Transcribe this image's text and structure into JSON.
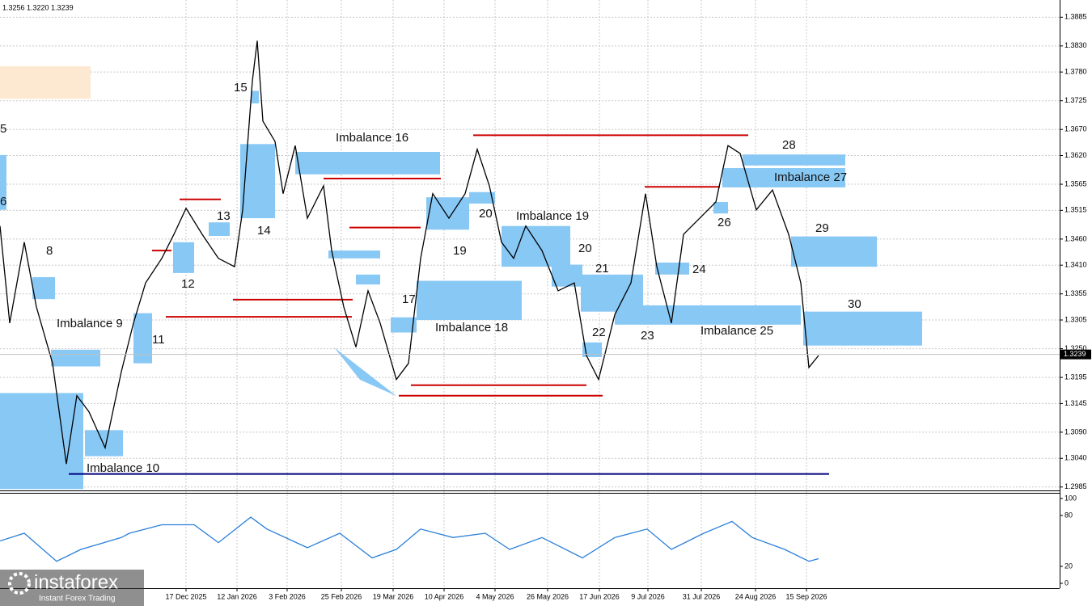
{
  "header": {
    "ohlc": "1.3256 1.3220 1.3239"
  },
  "chart_data": {
    "type": "line",
    "color": "#000000",
    "x": [
      0,
      3,
      7.5,
      11.25,
      16.25,
      20.5,
      23.75,
      27.5,
      32.5,
      37.5,
      41.25,
      45,
      50,
      53.75,
      57.5,
      62.5,
      67.5,
      72.5,
      75,
      78,
      79.5,
      81.25,
      85,
      87.5,
      91.25,
      95,
      100,
      102.5,
      106.25,
      110,
      113.75,
      117.5,
      122.5,
      126.25,
      130,
      133.75,
      138.75,
      143.75,
      147.5,
      151.25,
      155,
      158.75,
      162.5,
      167.5,
      172.5,
      177.5,
      181.25,
      185,
      190,
      195,
      199.5,
      203,
      207.5,
      211.25,
      216.25,
      221.25,
      225,
      228.75,
      233.75,
      238.75,
      243.75,
      247.5,
      250,
      253
    ],
    "values": [
      1.3485,
      1.3299,
      1.3454,
      1.333,
      1.3222,
      1.3029,
      1.316,
      1.3129,
      1.306,
      1.3206,
      1.3299,
      1.3376,
      1.3423,
      1.3469,
      1.3519,
      1.3469,
      1.3423,
      1.3407,
      1.3516,
      1.3763,
      1.384,
      1.3686,
      1.3647,
      1.3547,
      1.3639,
      1.35,
      1.3562,
      1.3438,
      1.333,
      1.3253,
      1.3361,
      1.3299,
      1.3191,
      1.3222,
      1.3423,
      1.3547,
      1.35,
      1.3547,
      1.3632,
      1.3562,
      1.3454,
      1.3423,
      1.3485,
      1.3438,
      1.3361,
      1.3376,
      1.3237,
      1.3191,
      1.3315,
      1.3376,
      1.3547,
      1.3407,
      1.3299,
      1.3469,
      1.35,
      1.3531,
      1.3639,
      1.3624,
      1.3516,
      1.3554,
      1.3469,
      1.3376,
      1.3214,
      1.3237
    ],
    "xlim": [
      0,
      327.5
    ],
    "ylim": [
      1.298,
      1.3918
    ],
    "grid": true,
    "yticks": [
      1.3885,
      {
        "value": 1.383,
        "label": "1.3830"
      },
      {
        "value": 1.378,
        "label": "1.3780"
      },
      1.3725,
      {
        "value": 1.367,
        "label": "1.3670"
      },
      {
        "value": 1.362,
        "label": "1.3620"
      },
      1.3565,
      1.3515,
      {
        "value": 1.346,
        "label": "1.3460"
      },
      {
        "value": 1.341,
        "label": "1.3410"
      },
      1.3355,
      1.3305,
      {
        "value": 1.325,
        "label": "1.3250"
      },
      1.3195,
      1.3145,
      {
        "value": 1.309,
        "label": "1.3090"
      },
      {
        "value": 1.304,
        "label": "1.3040"
      },
      1.2985
    ],
    "xticks": [
      {
        "value": 57.5,
        "label": "17 Dec 2025"
      },
      {
        "value": 73.25,
        "label": "12 Jan 2026"
      },
      {
        "value": 88.75,
        "label": "3 Feb 2026"
      },
      {
        "value": 105.5,
        "label": "25 Feb 2026"
      },
      {
        "value": 121.5,
        "label": "19 Mar 2026"
      },
      {
        "value": 137.25,
        "label": "10 Apr 2026"
      },
      {
        "value": 153,
        "label": "4 May 2026"
      },
      {
        "value": 169.25,
        "label": "26 May 2026"
      },
      {
        "value": 185.25,
        "label": "17 Jun 2026"
      },
      {
        "value": 200.25,
        "label": "9 Jul 2026"
      },
      {
        "value": 216.75,
        "label": "31 Jul 2026"
      },
      {
        "value": 233.5,
        "label": "24 Aug 2026"
      },
      {
        "value": 249.25,
        "label": "15 Sep 2026"
      }
    ],
    "current_price": 1.3239,
    "zones": [
      {
        "top": 1.3791,
        "bottom": 1.3729,
        "x0": 0,
        "x1": 28,
        "color": "#fde9d2"
      },
      {
        "top": 1.3621,
        "bottom": 1.3516,
        "x0": 0,
        "x1": 2,
        "color": "#88c8f5"
      },
      {
        "top": 1.3387,
        "bottom": 1.3345,
        "x0": 10,
        "x1": 17,
        "color": "#88c8f5"
      },
      {
        "top": 1.3248,
        "bottom": 1.3216,
        "x0": 15.75,
        "x1": 31,
        "color": "#88c8f5"
      },
      {
        "top": 1.3165,
        "bottom": 1.2981,
        "x0": 0,
        "x1": 25.75,
        "color": "#88c8f5"
      },
      {
        "top": 1.3094,
        "bottom": 1.3044,
        "x0": 26.25,
        "x1": 38,
        "color": "#88c8f5"
      },
      {
        "top": 1.3318,
        "bottom": 1.3222,
        "x0": 41.25,
        "x1": 47,
        "color": "#88c8f5"
      },
      {
        "top": 1.3454,
        "bottom": 1.3395,
        "x0": 53.5,
        "x1": 60,
        "color": "#88c8f5"
      },
      {
        "top": 1.3492,
        "bottom": 1.3466,
        "x0": 64.5,
        "x1": 71,
        "color": "#88c8f5"
      },
      {
        "top": 1.3642,
        "bottom": 1.35,
        "x0": 74.25,
        "x1": 85,
        "color": "#88c8f5"
      },
      {
        "top": 1.3744,
        "bottom": 1.372,
        "x0": 77.5,
        "x1": 80,
        "color": "#88c8f5"
      },
      {
        "top": 1.3627,
        "bottom": 1.3584,
        "x0": 91.25,
        "x1": 136,
        "color": "#88c8f5"
      },
      {
        "top": 1.3438,
        "bottom": 1.3423,
        "x0": 101.5,
        "x1": 117.5,
        "color": "#88c8f5"
      },
      {
        "top": 1.3392,
        "bottom": 1.3373,
        "x0": 110,
        "x1": 117.5,
        "color": "#88c8f5"
      },
      {
        "top": 1.331,
        "bottom": 1.3281,
        "x0": 120.75,
        "x1": 128.75,
        "color": "#88c8f5"
      },
      {
        "top": 1.338,
        "bottom": 1.3305,
        "x0": 128.75,
        "x1": 161.25,
        "color": "#88c8f5"
      },
      {
        "top": 1.354,
        "bottom": 1.3478,
        "x0": 131.75,
        "x1": 145,
        "color": "#88c8f5"
      },
      {
        "top": 1.355,
        "bottom": 1.3528,
        "x0": 145,
        "x1": 153,
        "color": "#88c8f5"
      },
      {
        "top": 1.3485,
        "bottom": 1.3407,
        "x0": 155,
        "x1": 176.25,
        "color": "#88c8f5"
      },
      {
        "top": 1.3411,
        "bottom": 1.3369,
        "x0": 170.5,
        "x1": 180,
        "color": "#88c8f5"
      },
      {
        "top": 1.3392,
        "bottom": 1.3321,
        "x0": 179.5,
        "x1": 198.75,
        "color": "#88c8f5"
      },
      {
        "top": 1.3262,
        "bottom": 1.3234,
        "x0": 180,
        "x1": 186,
        "color": "#88c8f5"
      },
      {
        "top": 1.3333,
        "bottom": 1.3296,
        "x0": 190,
        "x1": 247.5,
        "color": "#88c8f5"
      },
      {
        "top": 1.3415,
        "bottom": 1.3392,
        "x0": 202.5,
        "x1": 213,
        "color": "#88c8f5"
      },
      {
        "top": 1.3531,
        "bottom": 1.3509,
        "x0": 220.5,
        "x1": 225,
        "color": "#88c8f5"
      },
      {
        "top": 1.3596,
        "bottom": 1.3559,
        "x0": 223.25,
        "x1": 261.25,
        "color": "#88c8f5"
      },
      {
        "top": 1.3622,
        "bottom": 1.3601,
        "x0": 229.5,
        "x1": 261.25,
        "color": "#88c8f5"
      },
      {
        "top": 1.3465,
        "bottom": 1.3407,
        "x0": 244.5,
        "x1": 271,
        "color": "#88c8f5"
      },
      {
        "top": 1.3321,
        "bottom": 1.3256,
        "x0": 248.25,
        "x1": 285,
        "color": "#88c8f5"
      }
    ],
    "levels": [
      {
        "price": 1.3536,
        "x0": 55.5,
        "x1": 68.25,
        "color": "#cc0000"
      },
      {
        "price": 1.3438,
        "x0": 47,
        "x1": 53,
        "color": "#cc0000"
      },
      {
        "price": 1.3311,
        "x0": 51.25,
        "x1": 108.75,
        "color": "#cc0000"
      },
      {
        "price": 1.3344,
        "x0": 72,
        "x1": 109,
        "color": "#cc0000"
      },
      {
        "price": 1.3576,
        "x0": 100,
        "x1": 136.25,
        "color": "#cc0000"
      },
      {
        "price": 1.3482,
        "x0": 108,
        "x1": 130,
        "color": "#cc0000"
      },
      {
        "price": 1.318,
        "x0": 127,
        "x1": 181.25,
        "color": "#cc0000"
      },
      {
        "price": 1.316,
        "x0": 123.25,
        "x1": 186.25,
        "color": "#cc0000"
      },
      {
        "price": 1.3659,
        "x0": 146.25,
        "x1": 231.25,
        "color": "#cc0000"
      },
      {
        "price": 1.356,
        "x0": 199.25,
        "x1": 222.5,
        "color": "#cc0000"
      },
      {
        "price": 1.301,
        "x0": 21.25,
        "x1": 256.25,
        "color": "#000080"
      }
    ],
    "annotations": [
      "5",
      "6",
      "8",
      "Imbalance 9",
      "Imbalance 10",
      "11",
      "12",
      "13",
      "14",
      "15",
      "Imbalance 16",
      "17",
      "Imbalance 18",
      "19",
      "20",
      "Imbalance 19",
      "20",
      "21",
      "22",
      "23",
      "24",
      "Imbalance 25",
      "26",
      "Imbalance 27",
      "28",
      "29",
      "30"
    ]
  },
  "indicator": {
    "type": "line",
    "color": "#2a7fd8",
    "x": [
      0,
      7.5,
      17.5,
      25,
      37.5,
      40,
      50,
      60,
      67.5,
      77.5,
      82.5,
      95,
      105,
      115,
      122.5,
      130,
      140,
      150,
      157.5,
      167.5,
      180,
      190,
      200,
      207.5,
      217.5,
      226.25,
      232.5,
      242.5,
      250,
      253
    ],
    "values": [
      50,
      59,
      26,
      40,
      54,
      59,
      69,
      69,
      48,
      78,
      64,
      42,
      59,
      30,
      40,
      64,
      54,
      59,
      40,
      54,
      30,
      54,
      64,
      40,
      59,
      73,
      54,
      40,
      26,
      29
    ],
    "ylim": [
      0,
      100
    ],
    "yticks": [
      0,
      20,
      80,
      100
    ]
  },
  "logo": {
    "name": "instaforex",
    "tagline": "Instant Forex Trading"
  }
}
